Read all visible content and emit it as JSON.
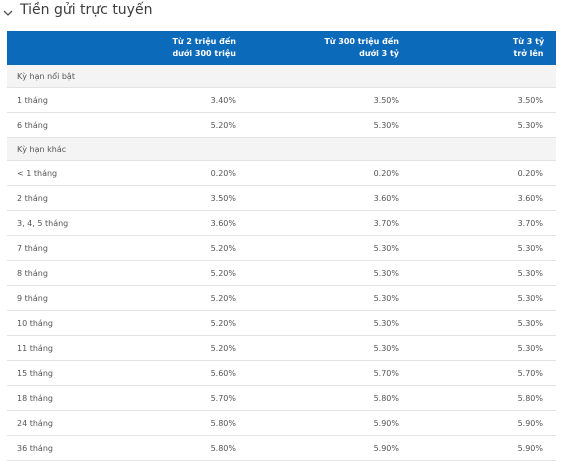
{
  "section": {
    "title": "Tiền gửi trực tuyến",
    "icon": "chevron-down-icon"
  },
  "table": {
    "headers": [
      "",
      [
        "Từ 2 triệu đến",
        "dưới 300 triệu"
      ],
      [
        "Từ 300 triệu đến",
        "dưới 3 tỷ"
      ],
      [
        "Từ 3 tỷ",
        "trở lên"
      ]
    ],
    "groups": [
      {
        "title": "Kỳ hạn nổi bật",
        "rows": [
          {
            "term": "1 tháng",
            "v1": "3.40%",
            "v2": "3.50%",
            "v3": "3.50%"
          },
          {
            "term": "6 tháng",
            "v1": "5.20%",
            "v2": "5.30%",
            "v3": "5.30%"
          }
        ]
      },
      {
        "title": "Kỳ hạn khác",
        "rows": [
          {
            "term": "< 1 tháng",
            "v1": "0.20%",
            "v2": "0.20%",
            "v3": "0.20%"
          },
          {
            "term": "2 tháng",
            "v1": "3.50%",
            "v2": "3.60%",
            "v3": "3.60%"
          },
          {
            "term": "3, 4, 5 tháng",
            "v1": "3.60%",
            "v2": "3.70%",
            "v3": "3.70%"
          },
          {
            "term": "7 tháng",
            "v1": "5.20%",
            "v2": "5.30%",
            "v3": "5.30%"
          },
          {
            "term": "8 tháng",
            "v1": "5.20%",
            "v2": "5.30%",
            "v3": "5.30%"
          },
          {
            "term": "9 tháng",
            "v1": "5.20%",
            "v2": "5.30%",
            "v3": "5.30%"
          },
          {
            "term": "10 tháng",
            "v1": "5.20%",
            "v2": "5.30%",
            "v3": "5.30%"
          },
          {
            "term": "11 tháng",
            "v1": "5.20%",
            "v2": "5.30%",
            "v3": "5.30%"
          },
          {
            "term": "15 tháng",
            "v1": "5.60%",
            "v2": "5.70%",
            "v3": "5.70%"
          },
          {
            "term": "18 tháng",
            "v1": "5.70%",
            "v2": "5.80%",
            "v3": "5.80%"
          },
          {
            "term": "24 tháng",
            "v1": "5.80%",
            "v2": "5.90%",
            "v3": "5.90%"
          },
          {
            "term": "36 tháng",
            "v1": "5.80%",
            "v2": "5.90%",
            "v3": "5.90%"
          }
        ]
      }
    ]
  },
  "colors": {
    "header_bg": "#0b6ab9",
    "header_text": "#ffffff",
    "group_bg": "#f4f4f4",
    "row_border": "#e3e3e3"
  }
}
